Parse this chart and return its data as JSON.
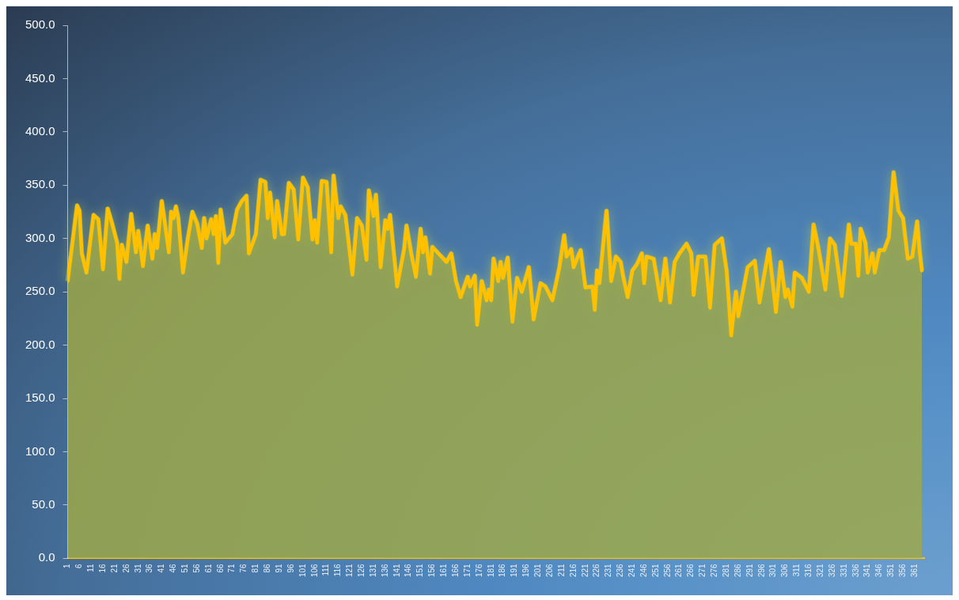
{
  "chart_data": {
    "type": "area",
    "xlim": [
      1,
      365
    ],
    "xticks": [
      1,
      6,
      11,
      16,
      21,
      26,
      31,
      36,
      41,
      46,
      51,
      56,
      61,
      66,
      71,
      76,
      81,
      86,
      91,
      96,
      101,
      106,
      111,
      116,
      121,
      126,
      131,
      136,
      141,
      146,
      151,
      156,
      161,
      166,
      171,
      176,
      181,
      186,
      191,
      196,
      201,
      206,
      211,
      216,
      221,
      226,
      231,
      236,
      241,
      246,
      251,
      256,
      261,
      266,
      271,
      276,
      281,
      286,
      291,
      296,
      301,
      306,
      311,
      316,
      321,
      326,
      331,
      336,
      341,
      346,
      351,
      356,
      361
    ],
    "ylim": [
      0,
      500
    ],
    "yticks": [
      {
        "value": 0,
        "label": "0.0"
      },
      {
        "value": 50,
        "label": "50.0"
      },
      {
        "value": 100,
        "label": "100.0"
      },
      {
        "value": 150,
        "label": "150.0"
      },
      {
        "value": 200,
        "label": "200.0"
      },
      {
        "value": 250,
        "label": "250.0"
      },
      {
        "value": 300,
        "label": "300.0"
      },
      {
        "value": 350,
        "label": "350.0"
      },
      {
        "value": 400,
        "label": "400.0"
      },
      {
        "value": 450,
        "label": "450.0"
      },
      {
        "value": 500,
        "label": "500.0"
      }
    ],
    "grid": false,
    "legend": false,
    "marker": "none",
    "line_style": "solid",
    "series": [
      {
        "color": "#ffc000",
        "x": [
          1,
          5,
          6,
          7,
          9,
          12,
          14,
          16,
          18,
          20,
          22,
          23,
          24,
          26,
          28,
          30,
          31,
          33,
          35,
          37,
          38,
          39,
          41,
          44,
          45,
          46,
          47,
          48,
          50,
          52,
          54,
          56,
          58,
          59,
          60,
          62,
          63,
          64,
          65,
          66,
          68,
          71,
          73,
          75,
          77,
          78,
          81,
          83,
          85,
          86,
          87,
          89,
          90,
          92,
          93,
          95,
          97,
          99,
          101,
          103,
          105,
          106,
          107,
          109,
          111,
          113,
          114,
          116,
          117,
          119,
          122,
          124,
          126,
          128,
          129,
          131,
          132,
          134,
          136,
          137,
          138,
          141,
          144,
          145,
          147,
          149,
          151,
          152,
          153,
          155,
          156,
          159,
          162,
          164,
          166,
          168,
          171,
          172,
          174,
          175,
          177,
          179,
          180,
          181,
          182,
          184,
          185,
          186,
          188,
          190,
          192,
          194,
          197,
          199,
          202,
          204,
          207,
          210,
          212,
          213,
          215,
          216,
          219,
          221,
          224,
          225,
          226,
          227,
          230,
          232,
          234,
          236,
          237,
          239,
          241,
          243,
          245,
          246,
          247,
          250,
          253,
          255,
          257,
          259,
          261,
          264,
          266,
          267,
          269,
          272,
          274,
          276,
          279,
          281,
          283,
          285,
          286,
          290,
          293,
          295,
          299,
          302,
          304,
          306,
          307,
          309,
          310,
          313,
          316,
          318,
          320,
          321,
          323,
          325,
          327,
          330,
          333,
          334,
          336,
          337,
          338,
          340,
          341,
          343,
          344,
          346,
          348,
          350,
          352,
          354,
          356,
          358,
          360,
          362,
          363,
          364
        ],
        "values": [
          260,
          331,
          326,
          286,
          268,
          322,
          318,
          271,
          328,
          313,
          296,
          262,
          294,
          278,
          323,
          287,
          307,
          274,
          312,
          281,
          304,
          291,
          335,
          287,
          325,
          319,
          330,
          319,
          268,
          299,
          325,
          314,
          291,
          319,
          300,
          318,
          304,
          321,
          277,
          327,
          296,
          304,
          327,
          335,
          340,
          286,
          304,
          355,
          353,
          319,
          343,
          301,
          335,
          304,
          304,
          352,
          346,
          299,
          357,
          348,
          299,
          317,
          296,
          354,
          353,
          287,
          359,
          319,
          330,
          322,
          266,
          319,
          312,
          280,
          345,
          321,
          341,
          273,
          317,
          309,
          322,
          255,
          290,
          312,
          286,
          264,
          309,
          287,
          301,
          267,
          292,
          285,
          278,
          286,
          260,
          245,
          264,
          255,
          265,
          219,
          260,
          242,
          252,
          242,
          281,
          260,
          278,
          263,
          282,
          222,
          263,
          250,
          273,
          224,
          258,
          255,
          242,
          273,
          303,
          283,
          290,
          273,
          289,
          254,
          255,
          233,
          270,
          258,
          326,
          260,
          283,
          278,
          265,
          245,
          270,
          276,
          286,
          258,
          283,
          281,
          242,
          281,
          240,
          278,
          286,
          295,
          286,
          247,
          283,
          283,
          235,
          294,
          300,
          270,
          209,
          250,
          227,
          273,
          279,
          240,
          290,
          231,
          278,
          245,
          252,
          236,
          268,
          263,
          250,
          313,
          291,
          278,
          252,
          300,
          294,
          246,
          313,
          295,
          295,
          265,
          309,
          296,
          268,
          286,
          268,
          289,
          289,
          301,
          362,
          326,
          319,
          281,
          283,
          316,
          289,
          270
        ]
      }
    ]
  }
}
